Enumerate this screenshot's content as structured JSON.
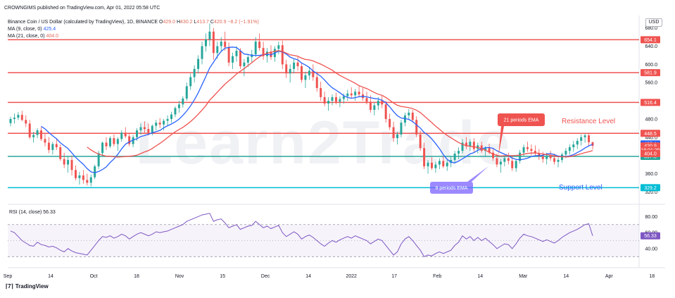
{
  "header": {
    "published_by": "CROWNGIMS published on TradingView.com, Apr 01, 2022 05:58 UTC",
    "symbol": "Binance Coin / US Dollar (calculated by TradingView), 1D, BINANCE",
    "ohlc": {
      "o_label": "O",
      "o": "429.0",
      "h_label": "H",
      "h": "430.2",
      "l_label": "L",
      "l": "413.7",
      "c_label": "C",
      "c": "420.9",
      "change": "−8.2 (−1.91%)"
    },
    "ma9_label": "MA (9, close, 0)",
    "ma9_value": "425.4",
    "ma21_label": "MA (21, close, 0)",
    "ma21_value": "404.0",
    "currency": "USD"
  },
  "footer": {
    "brand": "TradingView"
  },
  "chart_data": [
    {
      "type": "candlestick",
      "title": "Binance Coin / US Dollar (calculated by TradingView), 1D, BINANCE",
      "ylim": [
        305,
        695
      ],
      "y_ticks": [
        "680.0",
        "640.0",
        "600.0",
        "560.0",
        "520.0",
        "480.0",
        "440.0",
        "400.0",
        "360.0",
        "320.0"
      ],
      "x_ticks": [
        "Sep",
        "14",
        "Oct",
        "18",
        "Nov",
        "15",
        "Dec",
        "14",
        "2022",
        "17",
        "Feb",
        "14",
        "Mar",
        "14",
        "Apr",
        "18"
      ],
      "horizontal_levels": [
        {
          "value": 654.1,
          "label": "654.1",
          "color": "#ef5350"
        },
        {
          "value": 581.9,
          "label": "581.9",
          "color": "#ef5350"
        },
        {
          "value": 516.4,
          "label": "516.4",
          "color": "#ef5350"
        },
        {
          "value": 448.5,
          "label": "448.5",
          "color": "#ef5350"
        },
        {
          "value": 397.8,
          "label": "397.8",
          "color": "#26a69a"
        },
        {
          "value": 329.2,
          "label": "329.2",
          "color": "#00bcd4"
        }
      ],
      "price_labels": [
        {
          "value": 425.4,
          "text": "425.4",
          "color": "#2962ff"
        },
        {
          "value": 420.9,
          "text": "420.9",
          "color": "#ef5350"
        },
        {
          "value": 412.0,
          "text": "18:01:29",
          "color": "#ef5350"
        },
        {
          "value": 404.0,
          "text": "404.0",
          "color": "#ef5350"
        }
      ],
      "annotations": [
        {
          "text": "Resistance Level",
          "color": "#ef5350"
        },
        {
          "text": "Support Level",
          "color": "#2962ff"
        },
        {
          "text": "21 periods EMA",
          "color": "#ef5350"
        },
        {
          "text": "9 periods EMA",
          "color": "#6c63ff"
        }
      ],
      "watermark": "Learn2Trade",
      "series": [
        {
          "name": "MA (9, close, 0)",
          "color": "#2962ff"
        },
        {
          "name": "MA (21, close, 0)",
          "color": "#ef5350"
        }
      ],
      "ohlc": [
        [
          471,
          485,
          464,
          480
        ],
        [
          480,
          492,
          470,
          483
        ],
        [
          483,
          495,
          478,
          489
        ],
        [
          489,
          498,
          475,
          478
        ],
        [
          478,
          488,
          462,
          470
        ],
        [
          470,
          478,
          436,
          440
        ],
        [
          440,
          452,
          428,
          445
        ],
        [
          445,
          460,
          438,
          455
        ],
        [
          455,
          462,
          432,
          436
        ],
        [
          436,
          448,
          420,
          428
        ],
        [
          428,
          440,
          405,
          412
        ],
        [
          412,
          430,
          402,
          425
        ],
        [
          425,
          438,
          412,
          418
        ],
        [
          418,
          424,
          388,
          392
        ],
        [
          392,
          406,
          372,
          380
        ],
        [
          380,
          398,
          362,
          390
        ],
        [
          390,
          400,
          356,
          368
        ],
        [
          368,
          378,
          345,
          350
        ],
        [
          350,
          364,
          336,
          356
        ],
        [
          356,
          368,
          338,
          346
        ],
        [
          346,
          360,
          334,
          340
        ],
        [
          340,
          358,
          332,
          352
        ],
        [
          352,
          380,
          348,
          376
        ],
        [
          376,
          410,
          370,
          405
        ],
        [
          405,
          430,
          398,
          428
        ],
        [
          428,
          440,
          412,
          420
        ],
        [
          420,
          442,
          416,
          438
        ],
        [
          438,
          446,
          420,
          425
        ],
        [
          425,
          440,
          410,
          436
        ],
        [
          436,
          455,
          430,
          450
        ],
        [
          450,
          462,
          438,
          442
        ],
        [
          442,
          450,
          420,
          425
        ],
        [
          425,
          445,
          418,
          440
        ],
        [
          440,
          460,
          432,
          455
        ],
        [
          455,
          470,
          446,
          462
        ],
        [
          462,
          475,
          450,
          458
        ],
        [
          458,
          470,
          444,
          450
        ],
        [
          450,
          468,
          444,
          465
        ],
        [
          465,
          478,
          455,
          472
        ],
        [
          472,
          482,
          460,
          468
        ],
        [
          468,
          480,
          455,
          476
        ],
        [
          476,
          488,
          466,
          480
        ],
        [
          480,
          496,
          472,
          490
        ],
        [
          490,
          508,
          484,
          504
        ],
        [
          504,
          520,
          494,
          512
        ],
        [
          512,
          530,
          505,
          525
        ],
        [
          525,
          560,
          520,
          552
        ],
        [
          552,
          580,
          544,
          572
        ],
        [
          572,
          598,
          560,
          590
        ],
        [
          590,
          620,
          580,
          612
        ],
        [
          612,
          650,
          600,
          640
        ],
        [
          640,
          668,
          628,
          655
        ],
        [
          655,
          690,
          640,
          672
        ],
        [
          672,
          680,
          610,
          625
        ],
        [
          625,
          650,
          612,
          640
        ],
        [
          640,
          660,
          628,
          650
        ],
        [
          650,
          672,
          630,
          638
        ],
        [
          638,
          648,
          596,
          604
        ],
        [
          604,
          626,
          590,
          618
        ],
        [
          618,
          640,
          606,
          630
        ],
        [
          630,
          636,
          590,
          596
        ],
        [
          596,
          612,
          574,
          604
        ],
        [
          604,
          622,
          594,
          616
        ],
        [
          616,
          632,
          604,
          622
        ],
        [
          622,
          660,
          616,
          650
        ],
        [
          650,
          668,
          630,
          636
        ],
        [
          636,
          650,
          610,
          618
        ],
        [
          618,
          636,
          604,
          628
        ],
        [
          628,
          642,
          610,
          616
        ],
        [
          616,
          640,
          606,
          634
        ],
        [
          634,
          650,
          622,
          642
        ],
        [
          642,
          652,
          590,
          600
        ],
        [
          600,
          610,
          570,
          580
        ],
        [
          580,
          600,
          560,
          590
        ],
        [
          590,
          612,
          580,
          604
        ],
        [
          604,
          616,
          586,
          596
        ],
        [
          596,
          604,
          560,
          566
        ],
        [
          566,
          584,
          548,
          576
        ],
        [
          576,
          594,
          566,
          586
        ],
        [
          586,
          600,
          564,
          572
        ],
        [
          572,
          584,
          540,
          548
        ],
        [
          548,
          562,
          520,
          528
        ],
        [
          528,
          540,
          508,
          514
        ],
        [
          514,
          528,
          498,
          520
        ],
        [
          520,
          534,
          510,
          528
        ],
        [
          528,
          538,
          512,
          518
        ],
        [
          518,
          530,
          506,
          524
        ],
        [
          524,
          536,
          514,
          530
        ],
        [
          530,
          544,
          520,
          536
        ],
        [
          536,
          550,
          526,
          532
        ],
        [
          532,
          546,
          520,
          540
        ],
        [
          540,
          552,
          528,
          534
        ],
        [
          534,
          548,
          520,
          526
        ],
        [
          526,
          540,
          512,
          518
        ],
        [
          518,
          532,
          494,
          500
        ],
        [
          500,
          516,
          488,
          510
        ],
        [
          510,
          528,
          500,
          520
        ],
        [
          520,
          532,
          504,
          512
        ],
        [
          512,
          520,
          472,
          480
        ],
        [
          480,
          492,
          456,
          462
        ],
        [
          462,
          474,
          430,
          438
        ],
        [
          438,
          452,
          424,
          446
        ],
        [
          446,
          478,
          440,
          472
        ],
        [
          472,
          494,
          464,
          488
        ],
        [
          488,
          502,
          478,
          494
        ],
        [
          494,
          500,
          472,
          478
        ],
        [
          478,
          486,
          440,
          446
        ],
        [
          446,
          454,
          410,
          416
        ],
        [
          416,
          428,
          370,
          376
        ],
        [
          376,
          390,
          360,
          384
        ],
        [
          384,
          396,
          368,
          372
        ],
        [
          372,
          386,
          362,
          380
        ],
        [
          380,
          394,
          370,
          388
        ],
        [
          388,
          398,
          372,
          376
        ],
        [
          376,
          390,
          366,
          384
        ],
        [
          384,
          398,
          374,
          390
        ],
        [
          390,
          410,
          382,
          404
        ],
        [
          404,
          418,
          392,
          410
        ],
        [
          410,
          436,
          404,
          428
        ],
        [
          428,
          440,
          414,
          420
        ],
        [
          420,
          436,
          410,
          430
        ],
        [
          430,
          438,
          408,
          414
        ],
        [
          414,
          428,
          404,
          422
        ],
        [
          422,
          430,
          406,
          410
        ],
        [
          410,
          420,
          398,
          416
        ],
        [
          416,
          426,
          402,
          406
        ],
        [
          406,
          414,
          388,
          394
        ],
        [
          394,
          404,
          374,
          380
        ],
        [
          380,
          392,
          362,
          386
        ],
        [
          386,
          400,
          376,
          394
        ],
        [
          394,
          406,
          380,
          388
        ],
        [
          388,
          400,
          366,
          372
        ],
        [
          372,
          392,
          364,
          388
        ],
        [
          388,
          412,
          382,
          406
        ],
        [
          406,
          424,
          398,
          418
        ],
        [
          418,
          430,
          408,
          414
        ],
        [
          414,
          424,
          400,
          410
        ],
        [
          410,
          422,
          398,
          404
        ],
        [
          404,
          414,
          390,
          398
        ],
        [
          398,
          408,
          384,
          392
        ],
        [
          392,
          406,
          380,
          400
        ],
        [
          400,
          410,
          388,
          394
        ],
        [
          394,
          404,
          380,
          386
        ],
        [
          386,
          396,
          374,
          390
        ],
        [
          390,
          406,
          384,
          402
        ],
        [
          402,
          416,
          394,
          410
        ],
        [
          410,
          424,
          402,
          418
        ],
        [
          418,
          432,
          408,
          424
        ],
        [
          424,
          438,
          414,
          432
        ],
        [
          432,
          446,
          422,
          440
        ],
        [
          440,
          448,
          428,
          444
        ],
        [
          444,
          450,
          420,
          429
        ],
        [
          429,
          430,
          413,
          421
        ]
      ]
    },
    {
      "type": "line",
      "title": "RSI (14, close)",
      "series": [
        {
          "name": "RSI (14, close)",
          "color": "#7e57c2",
          "last": "56.33"
        }
      ],
      "y_ticks": [
        "80.00",
        "60.00",
        "40.00"
      ],
      "ylim": [
        25,
        90
      ],
      "bands": [
        70,
        30
      ],
      "values": [
        62,
        60,
        55,
        50,
        47,
        44,
        43,
        48,
        45,
        44,
        42,
        43,
        41,
        38,
        36,
        40,
        37,
        35,
        34,
        33,
        32,
        38,
        44,
        50,
        55,
        54,
        56,
        53,
        55,
        58,
        56,
        52,
        55,
        58,
        60,
        58,
        56,
        58,
        61,
        60,
        61,
        62,
        64,
        66,
        68,
        70,
        74,
        76,
        78,
        80,
        82,
        83,
        84,
        74,
        76,
        77,
        72,
        66,
        68,
        70,
        64,
        66,
        68,
        69,
        74,
        70,
        66,
        68,
        65,
        67,
        69,
        60,
        55,
        58,
        61,
        58,
        52,
        55,
        57,
        54,
        50,
        46,
        43,
        47,
        50,
        48,
        51,
        53,
        55,
        53,
        56,
        54,
        52,
        50,
        46,
        49,
        52,
        50,
        44,
        38,
        32,
        36,
        46,
        52,
        55,
        50,
        44,
        38,
        30,
        32,
        31,
        34,
        36,
        34,
        36,
        38,
        44,
        48,
        56,
        52,
        55,
        50,
        54,
        50,
        53,
        49,
        45,
        40,
        43,
        46,
        45,
        40,
        46,
        53,
        58,
        56,
        55,
        53,
        51,
        49,
        51,
        49,
        47,
        50,
        54,
        57,
        60,
        62,
        64,
        67,
        70,
        71,
        56
      ]
    }
  ]
}
